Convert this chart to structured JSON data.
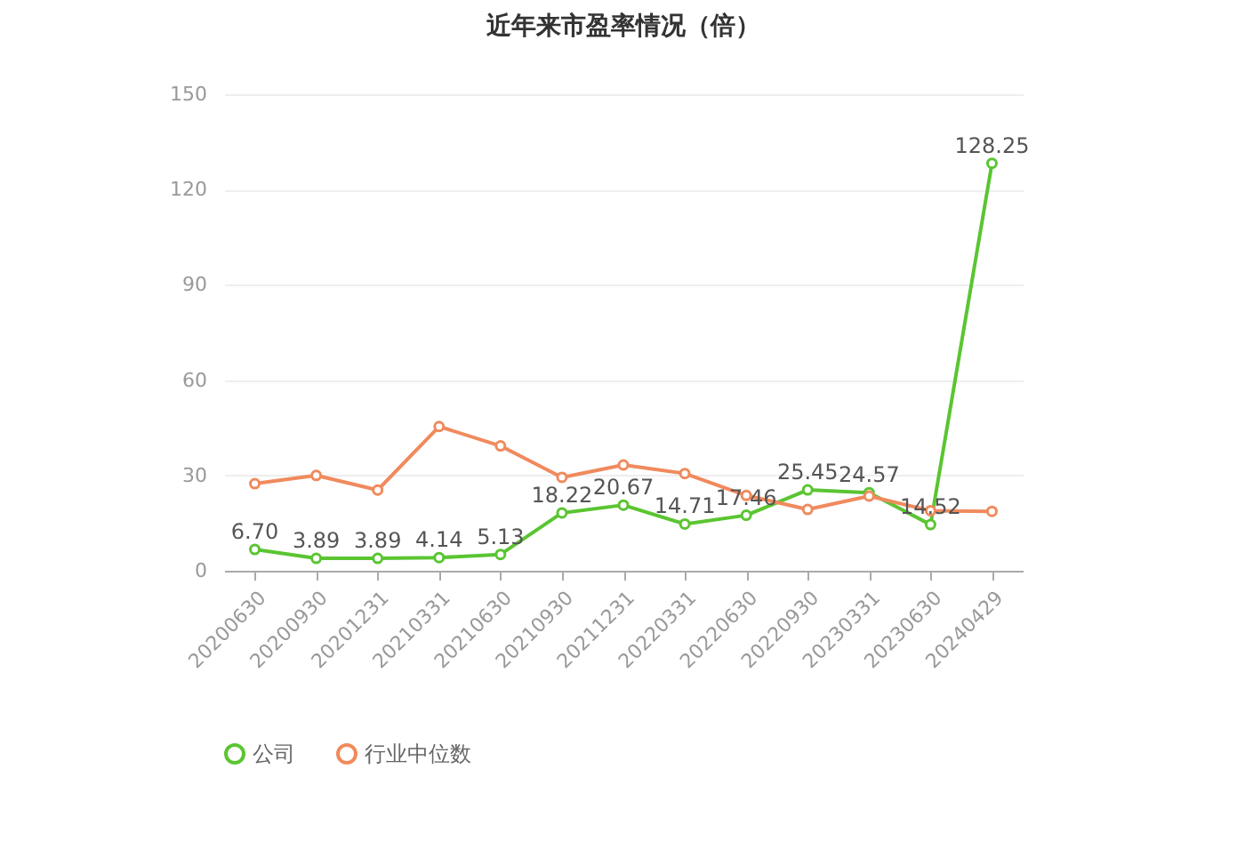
{
  "chart_data": {
    "type": "line",
    "title": "近年来市盈率情况（倍）",
    "categories": [
      "20200630",
      "20200930",
      "20201231",
      "20210331",
      "20210630",
      "20210930",
      "20211231",
      "20220331",
      "20220630",
      "20220930",
      "20230331",
      "20230630",
      "20240429"
    ],
    "series": [
      {
        "name": "公司",
        "color": "#5ac531",
        "values": [
          6.7,
          3.89,
          3.89,
          4.14,
          5.13,
          18.22,
          20.67,
          14.71,
          17.46,
          25.45,
          24.57,
          14.52,
          128.25
        ],
        "value_labels": [
          "6.70",
          "3.89",
          "3.89",
          "4.14",
          "5.13",
          "18.22",
          "20.67",
          "14.71",
          "17.46",
          "25.45",
          "24.57",
          "14.52",
          "128.25"
        ]
      },
      {
        "name": "行业中位数",
        "color": "#f08a5d",
        "values": [
          27.4,
          30.0,
          25.4,
          45.4,
          39.3,
          29.4,
          33.3,
          30.6,
          23.7,
          19.3,
          23.5,
          18.9,
          18.7
        ]
      }
    ],
    "ylim": [
      0,
      150
    ],
    "yticks": [
      0,
      30,
      60,
      90,
      120,
      150
    ],
    "grid": "y",
    "legend": "bottom",
    "marker": "circle",
    "line_style": "solid"
  }
}
